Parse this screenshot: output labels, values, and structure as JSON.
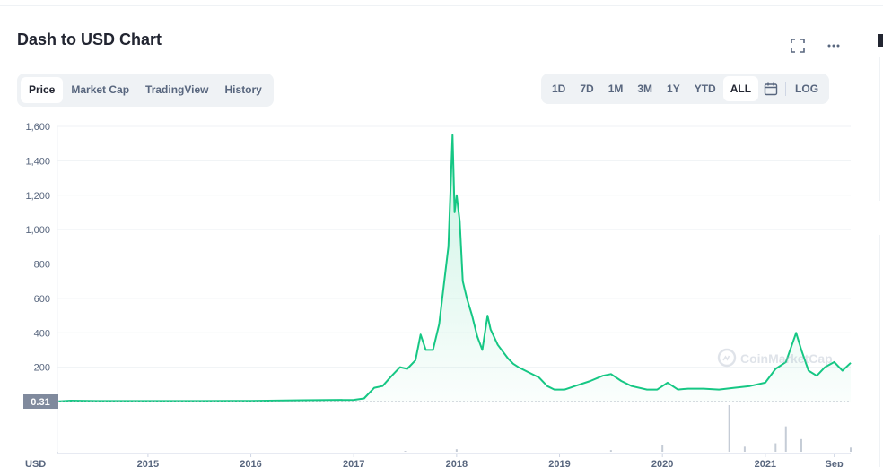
{
  "header": {
    "title": "Dash to USD Chart"
  },
  "icons": {
    "fullscreen": "fullscreen-icon",
    "more": "more-icon",
    "calendar": "calendar-icon",
    "watermark": "coinmarketcap-logo"
  },
  "tabs": [
    {
      "label": "Price",
      "active": true
    },
    {
      "label": "Market Cap",
      "active": false
    },
    {
      "label": "TradingView",
      "active": false
    },
    {
      "label": "History",
      "active": false
    }
  ],
  "ranges": [
    {
      "label": "1D"
    },
    {
      "label": "7D"
    },
    {
      "label": "1M"
    },
    {
      "label": "3M"
    },
    {
      "label": "1Y"
    },
    {
      "label": "YTD"
    },
    {
      "label": "ALL",
      "active": true
    }
  ],
  "log_label": "LOG",
  "watermark_text": "CoinMarketCap",
  "colors": {
    "line": "#16c784",
    "volume": "#c5ccd6",
    "accent": "#222531",
    "price_tag": "#808a9d"
  },
  "chart_data": {
    "type": "line",
    "title": "Dash to USD Chart",
    "ylabel": "",
    "xlabel": "",
    "ylim": [
      0,
      1600
    ],
    "y_ticks": [
      "1,600",
      "1,400",
      "1,200",
      "1,000",
      "800",
      "600",
      "400",
      "200"
    ],
    "y_tick_values": [
      1600,
      1400,
      1200,
      1000,
      800,
      600,
      400,
      200
    ],
    "x_ticks": [
      "2015",
      "2016",
      "2017",
      "2018",
      "2019",
      "2020",
      "2021",
      "Sep"
    ],
    "x_tick_values": [
      2015.0,
      2016.0,
      2017.0,
      2018.0,
      2019.0,
      2020.0,
      2021.0,
      2021.67
    ],
    "x_range": [
      2014.12,
      2021.83
    ],
    "current_price_label": "0.31",
    "currency_label": "USD",
    "grid": true,
    "series": [
      {
        "values": [
          [
            2014.12,
            0.3
          ],
          [
            2014.25,
            5
          ],
          [
            2014.5,
            3
          ],
          [
            2014.75,
            3
          ],
          [
            2015.0,
            3
          ],
          [
            2015.5,
            3
          ],
          [
            2016.0,
            4
          ],
          [
            2016.5,
            8
          ],
          [
            2016.75,
            9
          ],
          [
            2017.0,
            10
          ],
          [
            2017.1,
            18
          ],
          [
            2017.2,
            80
          ],
          [
            2017.28,
            90
          ],
          [
            2017.37,
            150
          ],
          [
            2017.45,
            200
          ],
          [
            2017.52,
            190
          ],
          [
            2017.6,
            240
          ],
          [
            2017.65,
            390
          ],
          [
            2017.7,
            300
          ],
          [
            2017.77,
            300
          ],
          [
            2017.83,
            450
          ],
          [
            2017.88,
            700
          ],
          [
            2017.92,
            900
          ],
          [
            2017.96,
            1550
          ],
          [
            2017.98,
            1100
          ],
          [
            2018.0,
            1200
          ],
          [
            2018.03,
            1050
          ],
          [
            2018.06,
            700
          ],
          [
            2018.1,
            600
          ],
          [
            2018.15,
            500
          ],
          [
            2018.2,
            380
          ],
          [
            2018.25,
            300
          ],
          [
            2018.3,
            500
          ],
          [
            2018.33,
            420
          ],
          [
            2018.4,
            330
          ],
          [
            2018.5,
            250
          ],
          [
            2018.55,
            220
          ],
          [
            2018.6,
            200
          ],
          [
            2018.7,
            170
          ],
          [
            2018.8,
            140
          ],
          [
            2018.88,
            90
          ],
          [
            2018.95,
            70
          ],
          [
            2019.05,
            70
          ],
          [
            2019.15,
            90
          ],
          [
            2019.3,
            120
          ],
          [
            2019.42,
            150
          ],
          [
            2019.5,
            160
          ],
          [
            2019.6,
            120
          ],
          [
            2019.7,
            90
          ],
          [
            2019.85,
            70
          ],
          [
            2019.95,
            70
          ],
          [
            2020.05,
            110
          ],
          [
            2020.15,
            70
          ],
          [
            2020.25,
            75
          ],
          [
            2020.4,
            75
          ],
          [
            2020.55,
            70
          ],
          [
            2020.7,
            80
          ],
          [
            2020.85,
            90
          ],
          [
            2021.0,
            110
          ],
          [
            2021.1,
            190
          ],
          [
            2021.2,
            230
          ],
          [
            2021.3,
            400
          ],
          [
            2021.35,
            300
          ],
          [
            2021.42,
            180
          ],
          [
            2021.5,
            150
          ],
          [
            2021.58,
            200
          ],
          [
            2021.67,
            230
          ],
          [
            2021.75,
            180
          ],
          [
            2021.83,
            225
          ]
        ]
      }
    ],
    "volume": [
      [
        2014.12,
        0
      ],
      [
        2017.5,
        1
      ],
      [
        2018.0,
        3
      ],
      [
        2019.5,
        2
      ],
      [
        2020.0,
        8
      ],
      [
        2020.65,
        55
      ],
      [
        2020.8,
        6
      ],
      [
        2021.1,
        10
      ],
      [
        2021.2,
        30
      ],
      [
        2021.35,
        15
      ],
      [
        2021.83,
        5
      ]
    ]
  }
}
